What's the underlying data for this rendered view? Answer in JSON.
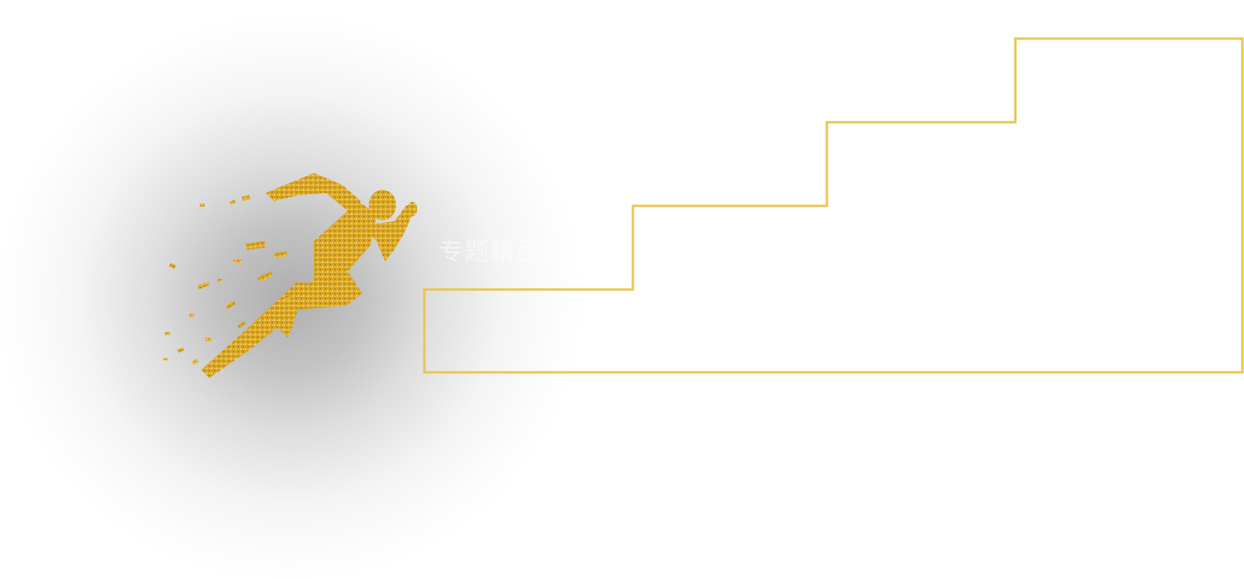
{
  "watermark_text": "专题精品",
  "colors": {
    "gold": "#E8C654",
    "glow": "#B5B5B5",
    "runner_gold": "#D9A623",
    "background": "#FFFFFF"
  },
  "icons": {
    "runner": "sprinting-figure-icon",
    "stairs": "staircase-outline-icon"
  }
}
